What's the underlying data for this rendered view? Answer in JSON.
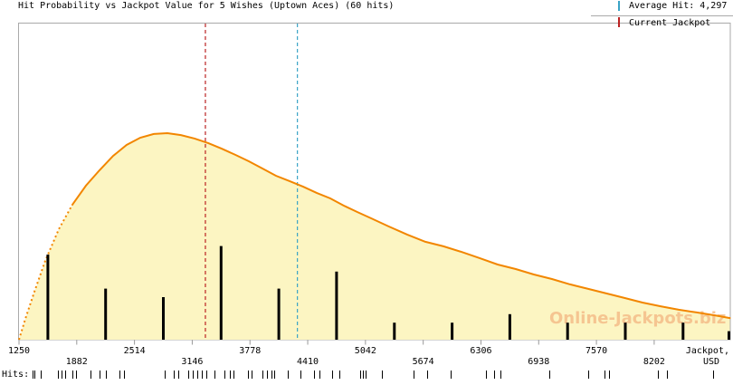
{
  "title": "Hit Probability vs Jackpot Value for 5 Wishes (Uptown Aces) (60 hits)",
  "legend": {
    "items": [
      {
        "label": "Average Hit: 4,297",
        "color": "#39a3c6"
      },
      {
        "label": "Current Jackpot",
        "color": "#bb2222"
      }
    ]
  },
  "watermark": "Online-Jackpots.biz",
  "hits_row_label": "Hits:",
  "x_axis_title": {
    "line1": "Jackpot,",
    "line2": "USD"
  },
  "chart_data": {
    "type": "area",
    "title": "Hit Probability vs Jackpot Value for 5 Wishes (Uptown Aces) (60 hits)",
    "xlabel": "Jackpot, USD",
    "ylabel": "Hit Probability",
    "x_range": [
      1250,
      9035
    ],
    "x_tick_values": [
      1250,
      1882,
      2514,
      3146,
      3778,
      4410,
      5042,
      5674,
      6306,
      6938,
      7570,
      8202
    ],
    "grid": false,
    "legend_position": "top-right",
    "total_hits": 60,
    "average_hit": 4297,
    "current_jackpot": 3290,
    "probability_curve": {
      "comment": "relative probability, 1.0 = peak (mode ~2874 USD)",
      "x": [
        1250,
        1319,
        1418,
        1537,
        1686,
        1834,
        1983,
        2131,
        2280,
        2428,
        2577,
        2725,
        2874,
        3022,
        3171,
        3320,
        3468,
        3617,
        3765,
        3914,
        4062,
        4211,
        4360,
        4508,
        4657,
        4805,
        4954,
        5102,
        5300,
        5498,
        5697,
        5895,
        6093,
        6291,
        6489,
        6687,
        6885,
        7083,
        7281,
        7480,
        7678,
        7876,
        8074,
        8272,
        8470,
        8668,
        8866,
        9035
      ],
      "rel_y": [
        0,
        0.101,
        0.232,
        0.382,
        0.535,
        0.654,
        0.746,
        0.82,
        0.89,
        0.943,
        0.978,
        0.996,
        1.0,
        0.991,
        0.974,
        0.952,
        0.925,
        0.895,
        0.864,
        0.829,
        0.794,
        0.768,
        0.741,
        0.711,
        0.684,
        0.649,
        0.618,
        0.588,
        0.548,
        0.509,
        0.474,
        0.452,
        0.425,
        0.395,
        0.364,
        0.342,
        0.316,
        0.294,
        0.268,
        0.246,
        0.224,
        0.202,
        0.18,
        0.162,
        0.145,
        0.132,
        0.118,
        0.105
      ]
    },
    "histogram": {
      "bin_start": 1250,
      "bin_width": 632,
      "counts": [
        10,
        6,
        5,
        11,
        6,
        8,
        2,
        2,
        3,
        2,
        2,
        2,
        1
      ]
    },
    "hit_rug_values": [
      1399,
      1420,
      1488,
      1676,
      1715,
      1755,
      1834,
      1874,
      2032,
      2131,
      2201,
      2349,
      2399,
      2844,
      2943,
      2993,
      3102,
      3151,
      3201,
      3250,
      3300,
      3389,
      3498,
      3557,
      3597,
      3755,
      3795,
      3914,
      3963,
      4013,
      4042,
      4191,
      4330,
      4478,
      4537,
      4676,
      4755,
      4983,
      5013,
      5042,
      5221,
      5567,
      5716,
      5973,
      6360,
      6449,
      6518,
      7053,
      7479,
      7657,
      7707,
      8242,
      8341,
      8846
    ],
    "colors": {
      "curve": "#f28600",
      "area_fill": "#fcf5c2",
      "bars": "#000000",
      "average_hit_line": "#39a3c6",
      "current_jackpot_line": "#bb2222",
      "axis": "#aaaaaa",
      "tick": "#999999",
      "watermark": "#f5c08c"
    }
  }
}
